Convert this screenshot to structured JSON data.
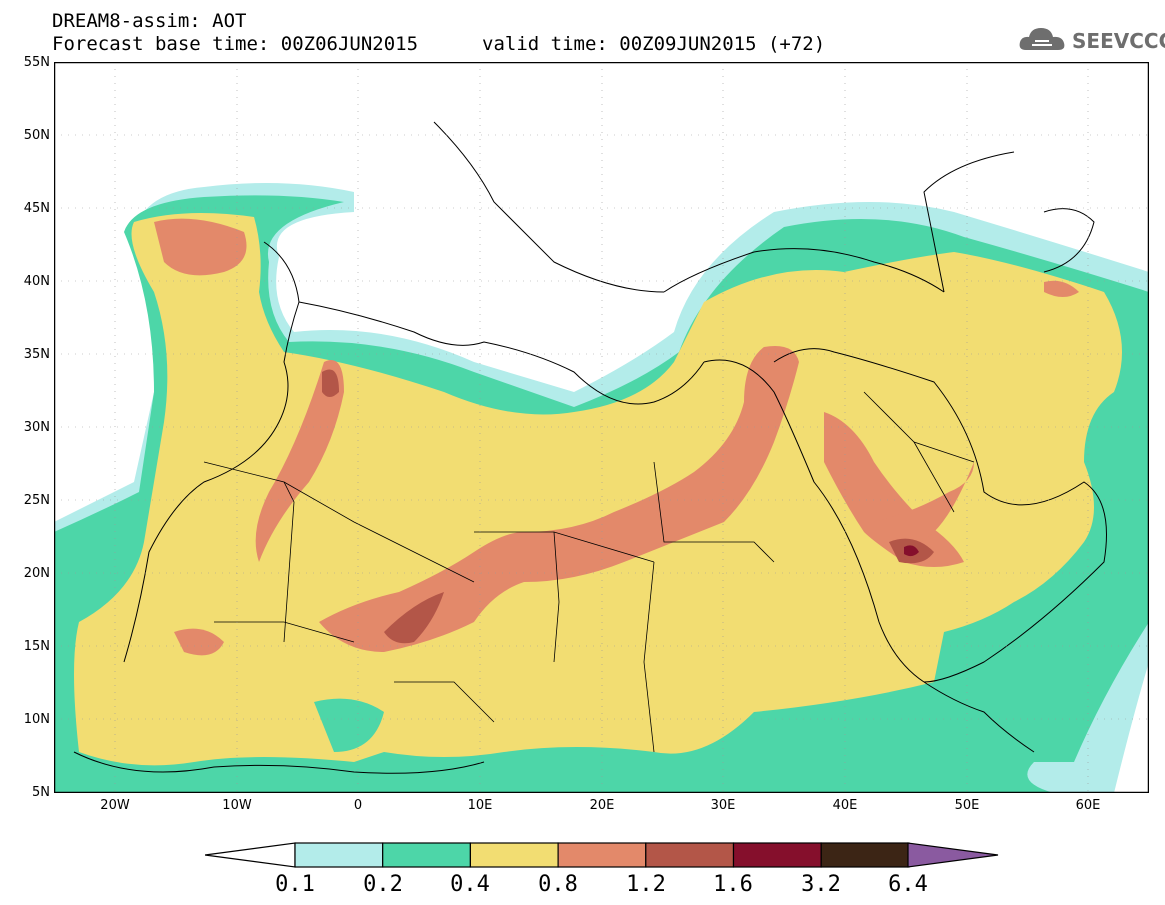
{
  "title": {
    "line1": "DREAM8-assim: AOT",
    "base_label": "Forecast base time: 00Z06JUN2015",
    "valid_label": "valid time: 00Z09JUN2015 (+72)"
  },
  "logo": {
    "text": "SEEVCCC",
    "icon": "cloud-logo-icon"
  },
  "map": {
    "lat_ticks": [
      "55N",
      "50N",
      "45N",
      "40N",
      "35N",
      "30N",
      "25N",
      "20N",
      "15N",
      "10N",
      "5N"
    ],
    "lon_ticks": [
      "20W",
      "10W",
      "0",
      "10E",
      "20E",
      "30E",
      "40E",
      "50E",
      "60E"
    ],
    "lat_range": [
      5,
      55
    ],
    "lon_range": [
      -25,
      65
    ]
  },
  "colorbar": {
    "labels": [
      "0.1",
      "0.2",
      "0.4",
      "0.8",
      "1.2",
      "1.6",
      "3.2",
      "6.4"
    ],
    "colors": [
      "#b3ecea",
      "#4dd6a8",
      "#f2dd72",
      "#e3896a",
      "#b35648",
      "#850f2c",
      "#3c2515",
      "#8a5aa0"
    ],
    "under_color": "#ffffff"
  }
}
